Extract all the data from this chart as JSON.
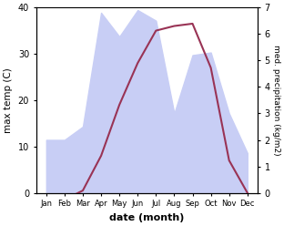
{
  "months": [
    "Jan",
    "Feb",
    "Mar",
    "Apr",
    "May",
    "Jun",
    "Jul",
    "Aug",
    "Sep",
    "Oct",
    "Nov",
    "Dec"
  ],
  "temp": [
    -0.5,
    -1.5,
    0.5,
    8.0,
    19.0,
    28.0,
    35.0,
    36.0,
    36.5,
    27.0,
    7.0,
    0.0
  ],
  "precip": [
    2.0,
    2.0,
    2.5,
    6.8,
    5.9,
    6.9,
    6.5,
    3.0,
    5.2,
    5.3,
    3.0,
    1.5
  ],
  "temp_color": "#993355",
  "precip_fill_color": "#c8cef5",
  "temp_ylim": [
    0,
    40
  ],
  "precip_ylim": [
    0,
    7
  ],
  "temp_yticks": [
    0,
    10,
    20,
    30,
    40
  ],
  "precip_yticks": [
    0,
    1,
    2,
    3,
    4,
    5,
    6,
    7
  ],
  "xlabel": "date (month)",
  "ylabel_left": "max temp (C)",
  "ylabel_right": "med. precipitation (kg/m2)",
  "bg_color": "#ffffff"
}
